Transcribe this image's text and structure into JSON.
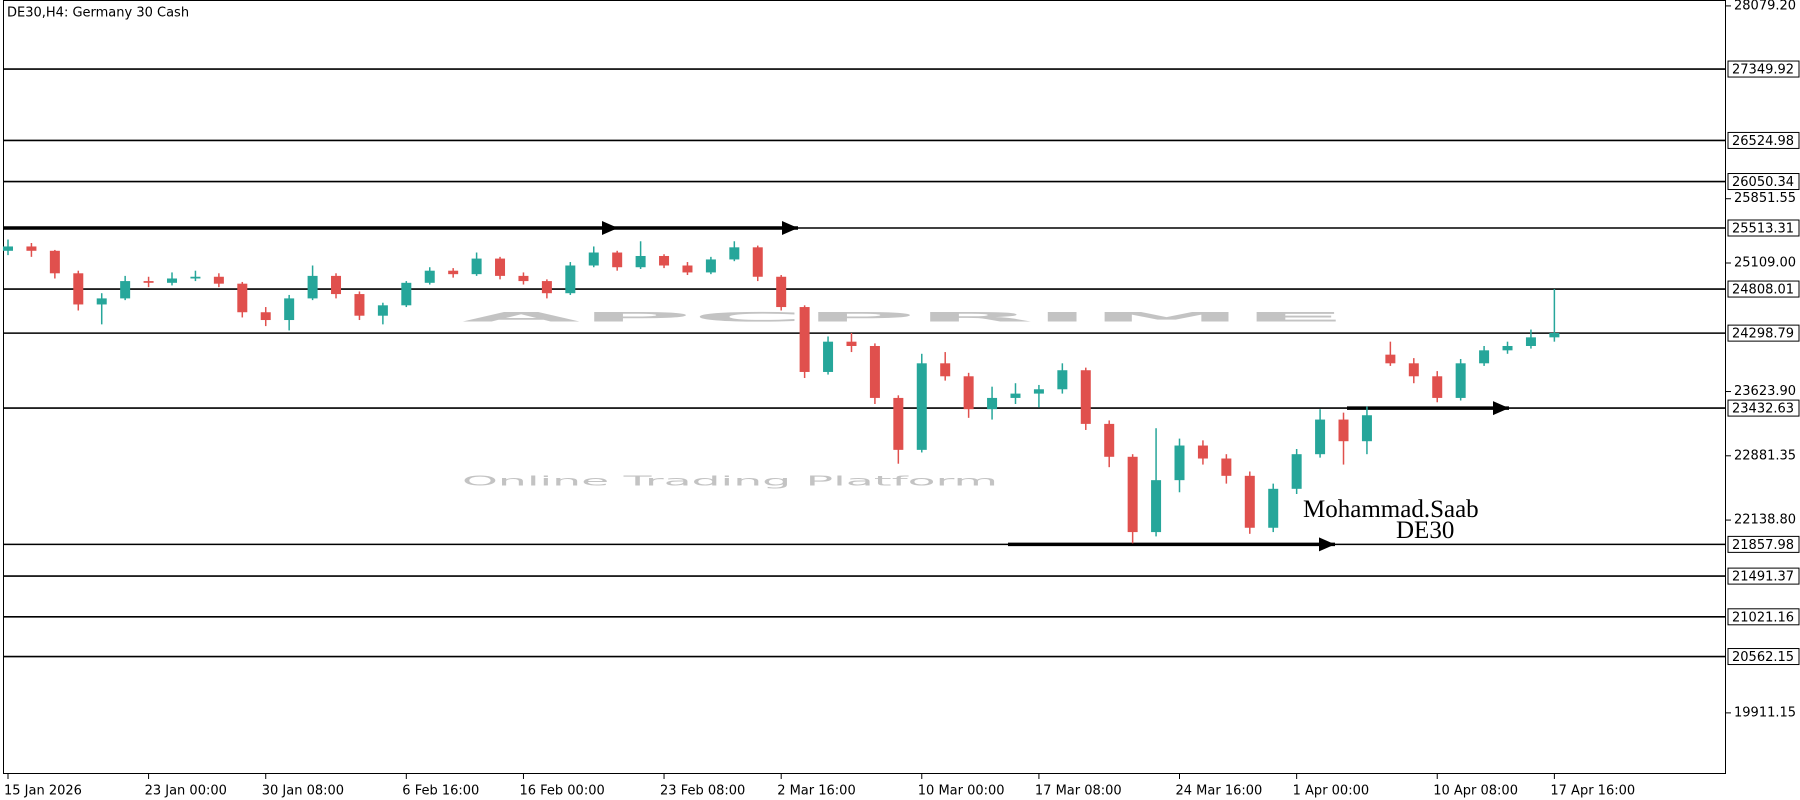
{
  "chart_data": {
    "type": "candlestick",
    "title": "DE30,H4:  Germany 30 Cash",
    "watermark": [
      "APCPRIME",
      "Online Trading Platform"
    ],
    "annotations": [
      "Mohammad.Saab",
      "DE30"
    ],
    "up_color": "#26a69a",
    "down_color": "#e0504d",
    "ylim": [
      19205,
      28136
    ],
    "yticks": [
      {
        "value": 28079.2,
        "label": "28079.20"
      },
      25851.55,
      {
        "value": 25109,
        "label": "25109.00"
      },
      {
        "value": 23623.9,
        "label": "23623.90"
      },
      22881.35,
      {
        "value": 22138.8,
        "label": "22138.80"
      },
      19911.15
    ],
    "levels": [
      27349.92,
      26524.98,
      26050.34,
      25513.31,
      24808.01,
      24298.79,
      23432.63,
      21857.98,
      21491.37,
      21021.16,
      20562.15
    ],
    "categories": [
      "15 Jan 2026",
      null,
      null,
      null,
      null,
      null,
      "23 Jan 00:00",
      null,
      null,
      null,
      null,
      "30 Jan 08:00",
      null,
      null,
      null,
      null,
      null,
      "6 Feb 16:00",
      null,
      null,
      null,
      null,
      "16 Feb 00:00",
      null,
      null,
      null,
      null,
      null,
      "23 Feb 08:00",
      null,
      null,
      null,
      null,
      "2 Mar 16:00",
      null,
      null,
      null,
      null,
      null,
      "10 Mar 00:00",
      null,
      null,
      null,
      null,
      "17 Mar 08:00",
      null,
      null,
      null,
      null,
      null,
      "24 Mar 16:00",
      null,
      null,
      null,
      null,
      "1 Apr 00:00",
      null,
      null,
      null,
      null,
      null,
      "10 Apr 08:00",
      null,
      null,
      null,
      null,
      "17 Apr 16:00"
    ],
    "ohlc": [
      [
        25250,
        25380,
        25200,
        25300
      ],
      [
        25300,
        25340,
        25180,
        25250
      ],
      [
        25250,
        25260,
        24930,
        24990
      ],
      [
        24990,
        25020,
        24560,
        24630
      ],
      [
        24630,
        24760,
        24400,
        24700
      ],
      [
        24700,
        24960,
        24680,
        24900
      ],
      [
        24900,
        24950,
        24830,
        24880
      ],
      [
        24880,
        25000,
        24850,
        24930
      ],
      [
        24930,
        25020,
        24900,
        24950
      ],
      [
        24950,
        24990,
        24830,
        24870
      ],
      [
        24870,
        24890,
        24480,
        24540
      ],
      [
        24540,
        24600,
        24380,
        24450
      ],
      [
        24450,
        24740,
        24330,
        24700
      ],
      [
        24700,
        25080,
        24680,
        24960
      ],
      [
        24960,
        24990,
        24700,
        24750
      ],
      [
        24750,
        24780,
        24450,
        24500
      ],
      [
        24500,
        24650,
        24400,
        24620
      ],
      [
        24620,
        24900,
        24600,
        24880
      ],
      [
        24880,
        25060,
        24860,
        25020
      ],
      [
        25020,
        25050,
        24940,
        24980
      ],
      [
        24980,
        25230,
        24960,
        25160
      ],
      [
        25160,
        25180,
        24920,
        24960
      ],
      [
        24960,
        25000,
        24860,
        24900
      ],
      [
        24900,
        24920,
        24700,
        24760
      ],
      [
        24760,
        25120,
        24740,
        25080
      ],
      [
        25080,
        25300,
        25060,
        25230
      ],
      [
        25230,
        25250,
        25020,
        25060
      ],
      [
        25060,
        25360,
        25040,
        25190
      ],
      [
        25190,
        25210,
        25050,
        25080
      ],
      [
        25080,
        25120,
        24970,
        25000
      ],
      [
        25000,
        25180,
        24980,
        25150
      ],
      [
        25150,
        25360,
        25130,
        25290
      ],
      [
        25290,
        25310,
        24900,
        24950
      ],
      [
        24950,
        24970,
        24560,
        24600
      ],
      [
        24600,
        24620,
        23780,
        23850
      ],
      [
        23850,
        24260,
        23820,
        24200
      ],
      [
        24200,
        24300,
        24080,
        24150
      ],
      [
        24150,
        24180,
        23480,
        23550
      ],
      [
        23550,
        23580,
        22790,
        22950
      ],
      [
        22950,
        24060,
        22920,
        23950
      ],
      [
        23950,
        24080,
        23750,
        23800
      ],
      [
        23800,
        23840,
        23320,
        23420
      ],
      [
        23420,
        23680,
        23300,
        23550
      ],
      [
        23550,
        23720,
        23480,
        23600
      ],
      [
        23600,
        23700,
        23440,
        23650
      ],
      [
        23650,
        23950,
        23600,
        23870
      ],
      [
        23870,
        23900,
        23180,
        23250
      ],
      [
        23250,
        23290,
        22750,
        22870
      ],
      [
        22870,
        22900,
        21870,
        22000
      ],
      [
        22000,
        23200,
        21950,
        22600
      ],
      [
        22600,
        23080,
        22460,
        23000
      ],
      [
        23000,
        23060,
        22780,
        22850
      ],
      [
        22850,
        22900,
        22560,
        22650
      ],
      [
        22650,
        22700,
        21980,
        22050
      ],
      [
        22050,
        22560,
        22000,
        22500
      ],
      [
        22500,
        22960,
        22440,
        22900
      ],
      [
        22900,
        23420,
        22860,
        23300
      ],
      [
        23300,
        23380,
        22780,
        23050
      ],
      [
        23050,
        23450,
        22900,
        23350
      ],
      [
        24050,
        24200,
        23920,
        23950
      ],
      [
        23950,
        24010,
        23720,
        23800
      ],
      [
        23800,
        23860,
        23500,
        23550
      ],
      [
        23550,
        24000,
        23520,
        23950
      ],
      [
        23950,
        24150,
        23920,
        24100
      ],
      [
        24100,
        24200,
        24060,
        24150
      ],
      [
        24150,
        24340,
        24120,
        24250
      ],
      [
        24250,
        24808,
        24200,
        24300
      ]
    ]
  }
}
